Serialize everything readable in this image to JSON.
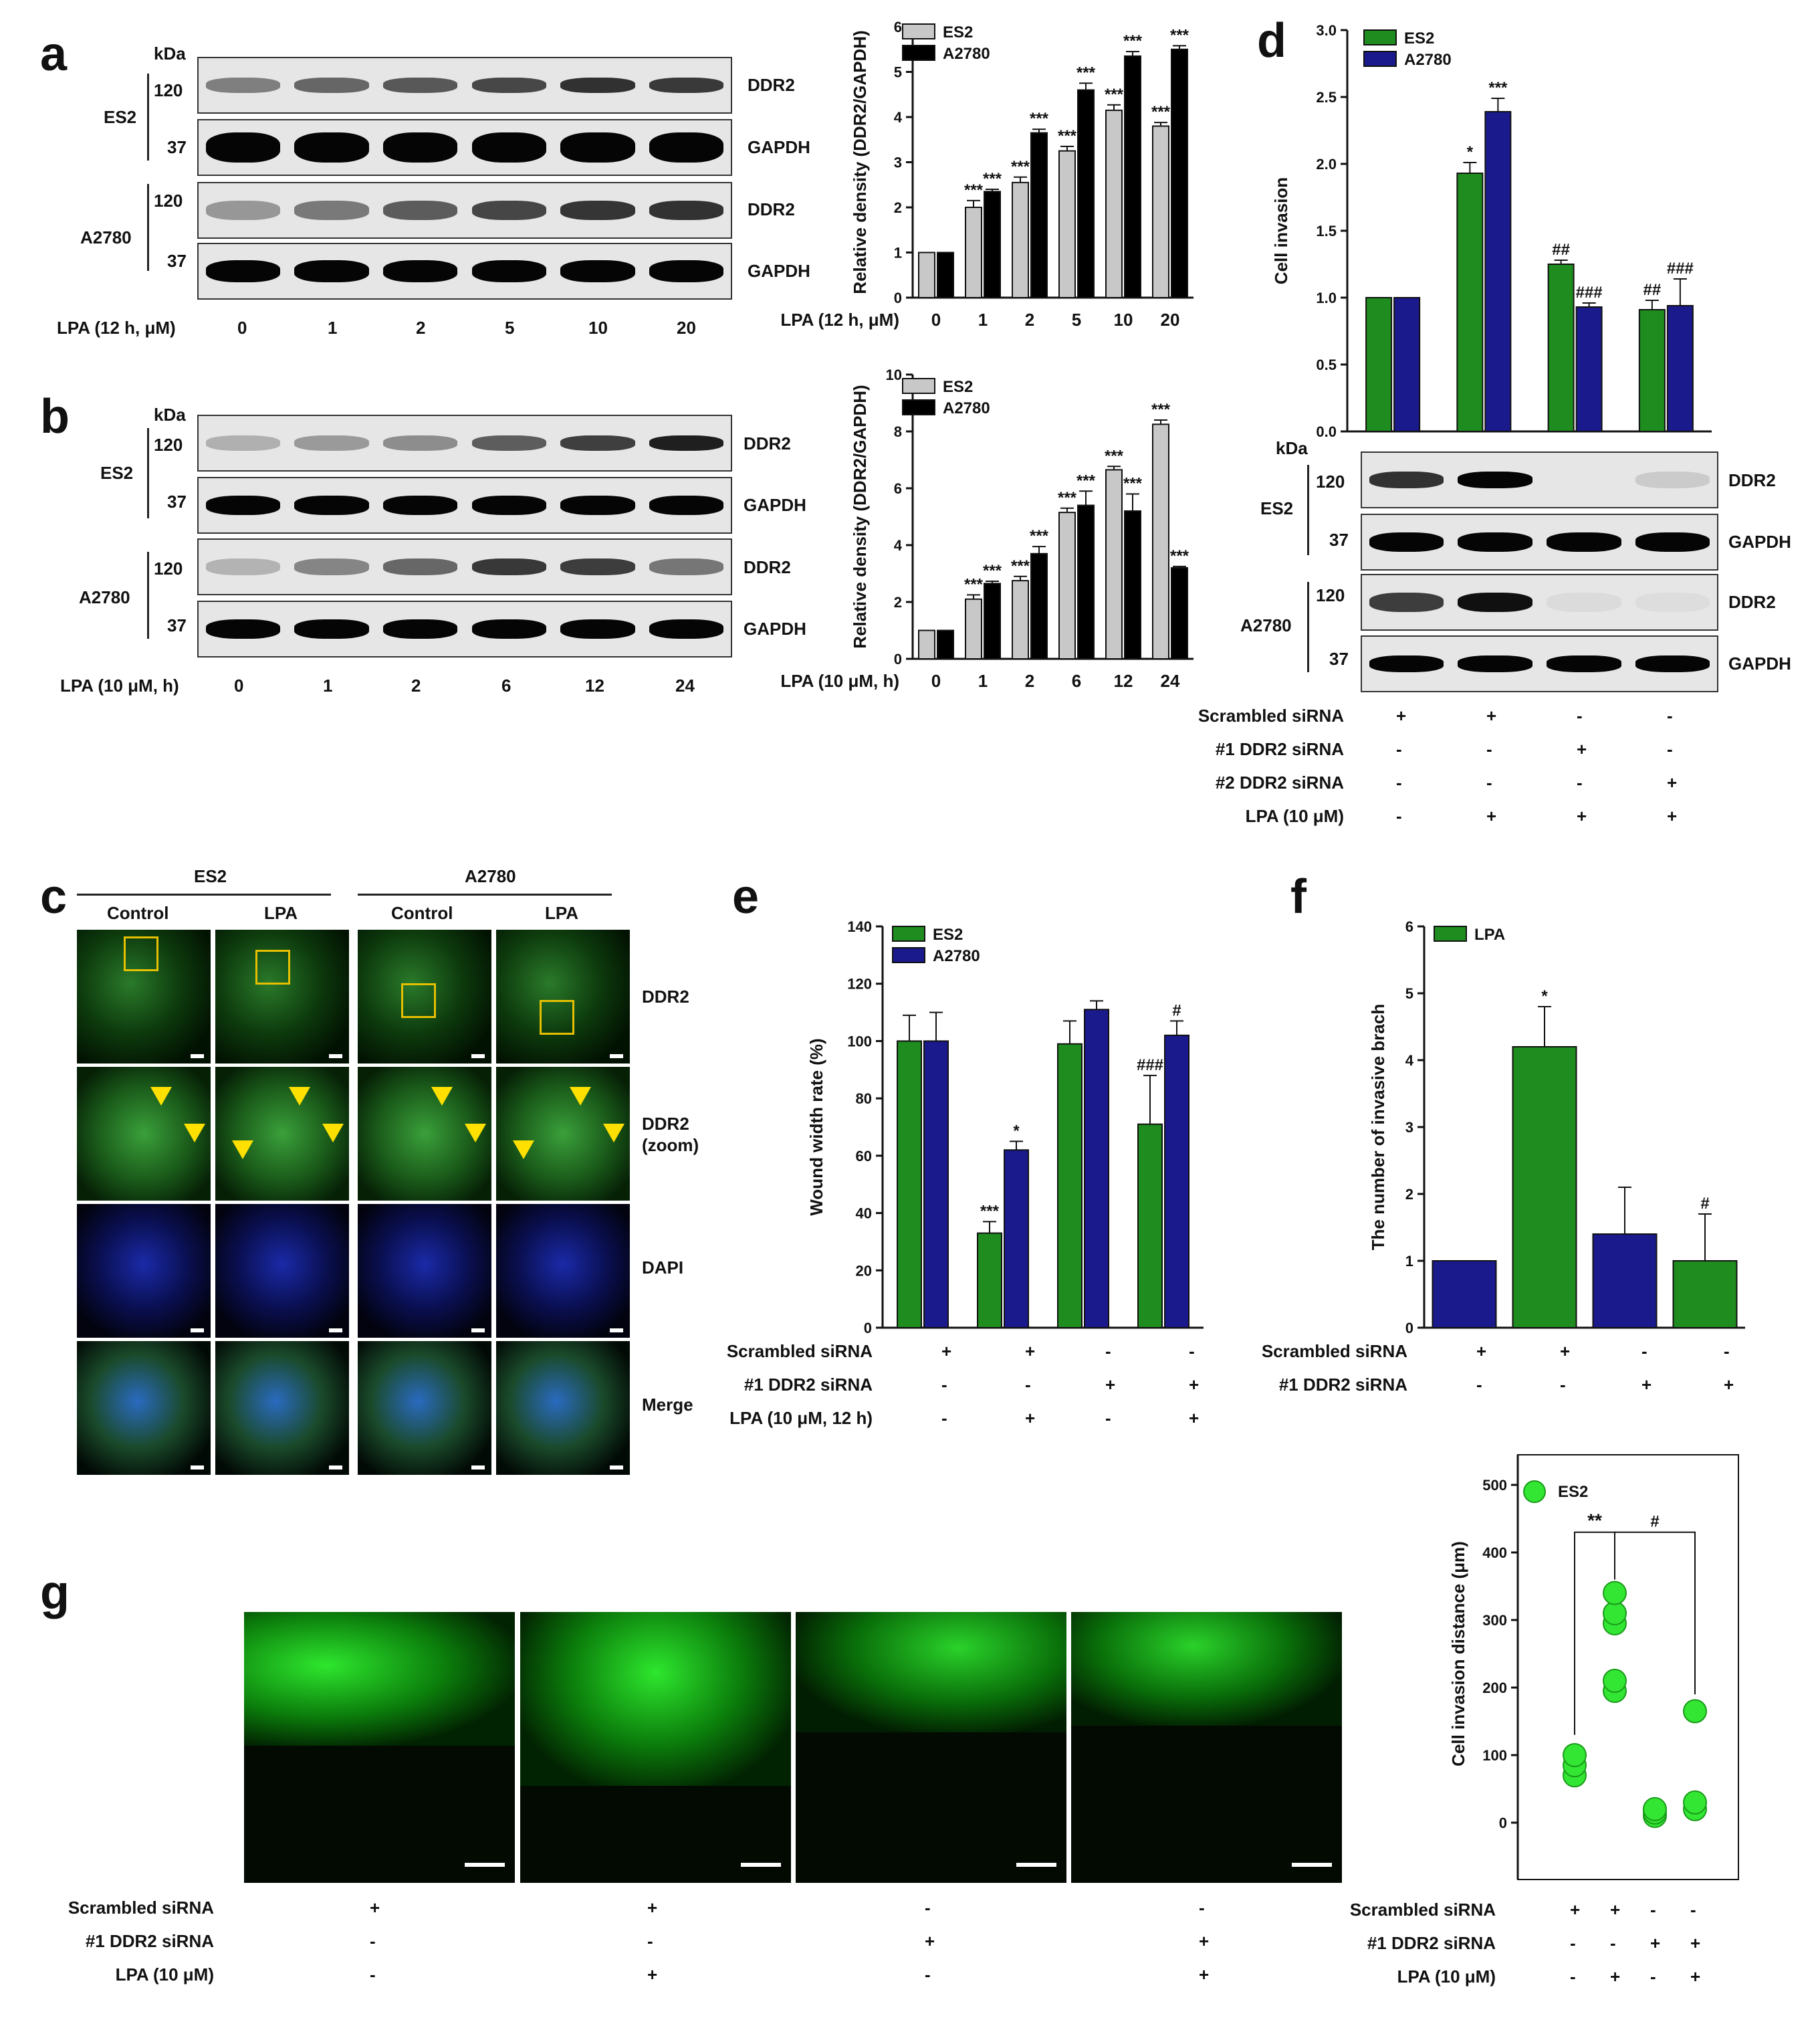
{
  "panels": {
    "a": "a",
    "b": "b",
    "c": "c",
    "d": "d",
    "e": "e",
    "f": "f",
    "g": "g"
  },
  "blot_common": {
    "kda": "kDa",
    "mw_120": "120",
    "mw_37": "37",
    "ddr2": "DDR2",
    "gapdh": "GAPDH",
    "es2": "ES2",
    "a2780": "A2780"
  },
  "panel_a": {
    "xlabel": "LPA (12 h, μM)",
    "lanes": [
      "0",
      "1",
      "2",
      "5",
      "10",
      "20"
    ]
  },
  "panel_b": {
    "xlabel": "LPA (10 μM, h)",
    "lanes": [
      "0",
      "1",
      "2",
      "6",
      "12",
      "24"
    ]
  },
  "panel_c": {
    "group_es2": "ES2",
    "group_a2780": "A2780",
    "cols": [
      "Control",
      "LPA",
      "Control",
      "LPA"
    ],
    "rows": [
      "DDR2",
      "DDR2",
      "(zoom)",
      "DAPI",
      "Merge"
    ]
  },
  "panel_d_blot": {
    "treat_labels": [
      "Scrambled siRNA",
      "#1 DDR2 siRNA",
      "#2 DDR2 siRNA",
      "LPA (10 μM)"
    ],
    "treat_signs": [
      [
        "+",
        "+",
        "-",
        "-"
      ],
      [
        "-",
        "-",
        "+",
        "-"
      ],
      [
        "-",
        "-",
        "-",
        "+"
      ],
      [
        "-",
        "+",
        "+",
        "+"
      ]
    ]
  },
  "panel_e_treat": {
    "labels": [
      "Scrambled siRNA",
      "#1 DDR2 siRNA",
      "LPA (10 μM, 12 h)"
    ],
    "signs": [
      [
        "+",
        "+",
        "-",
        "-"
      ],
      [
        "-",
        "-",
        "+",
        "+"
      ],
      [
        "-",
        "+",
        "-",
        "+"
      ]
    ]
  },
  "panel_f_treat": {
    "labels": [
      "Scrambled siRNA",
      "#1 DDR2 siRNA"
    ],
    "signs": [
      [
        "+",
        "+",
        "-",
        "-"
      ],
      [
        "-",
        "-",
        "+",
        "+"
      ]
    ]
  },
  "panel_g_treat": {
    "labels": [
      "Scrambled siRNA",
      "#1 DDR2 siRNA",
      "LPA (10 μM)"
    ],
    "signs": [
      [
        "+",
        "+",
        "-",
        "-"
      ],
      [
        "-",
        "-",
        "+",
        "+"
      ],
      [
        "-",
        "+",
        "-",
        "+"
      ]
    ]
  },
  "chart_data": [
    {
      "id": "a",
      "type": "bar",
      "xlabel": "LPA (12 h, μM)",
      "ylabel": "Relative density (DDR2/GAPDH)",
      "ylim": [
        0,
        6
      ],
      "yticks": [
        "0",
        "1",
        "2",
        "3",
        "4",
        "5",
        "6"
      ],
      "categories": [
        "0",
        "1",
        "2",
        "5",
        "10",
        "20"
      ],
      "series": [
        {
          "name": "ES2",
          "color": "#c8c8c8",
          "values": [
            1.0,
            2.0,
            2.55,
            3.25,
            4.15,
            3.8
          ],
          "err": [
            0,
            0.15,
            0.12,
            0.1,
            0.12,
            0.08
          ]
        },
        {
          "name": "A2780",
          "color": "#000000",
          "values": [
            1.0,
            2.35,
            3.65,
            4.6,
            5.35,
            5.5
          ],
          "err": [
            0,
            0.05,
            0.08,
            0.15,
            0.1,
            0.08
          ]
        }
      ],
      "annotations": [
        [
          "",
          "***",
          "***",
          "***",
          "***",
          "***"
        ],
        [
          "",
          "***",
          "***",
          "***",
          "***",
          "***"
        ]
      ]
    },
    {
      "id": "b",
      "type": "bar",
      "xlabel": "LPA (10 μM, h)",
      "ylabel": "Relative density (DDR2/GAPDH)",
      "ylim": [
        0,
        10
      ],
      "yticks": [
        "0",
        "2",
        "4",
        "6",
        "8",
        "10"
      ],
      "categories": [
        "0",
        "1",
        "2",
        "6",
        "12",
        "24"
      ],
      "series": [
        {
          "name": "ES2",
          "color": "#c8c8c8",
          "values": [
            1.0,
            2.1,
            2.75,
            5.15,
            6.65,
            8.25
          ],
          "err": [
            0,
            0.15,
            0.15,
            0.15,
            0.12,
            0.15
          ]
        },
        {
          "name": "A2780",
          "color": "#000000",
          "values": [
            1.0,
            2.65,
            3.7,
            5.4,
            5.2,
            3.2
          ],
          "err": [
            0,
            0.08,
            0.25,
            0.5,
            0.6,
            0.05
          ]
        }
      ],
      "annotations": [
        [
          "",
          "***",
          "***",
          "***",
          "***",
          "***"
        ],
        [
          "",
          "***",
          "***",
          "***",
          "***",
          "***"
        ]
      ]
    },
    {
      "id": "d",
      "type": "bar",
      "ylabel": "Cell invasion",
      "ylim": [
        0,
        3.0
      ],
      "yticks": [
        "0.0",
        "0.5",
        "1.0",
        "1.5",
        "2.0",
        "2.5",
        "3.0"
      ],
      "categories": [
        "1",
        "2",
        "3",
        "4"
      ],
      "series": [
        {
          "name": "ES2",
          "color": "#1e8c1e",
          "values": [
            1.0,
            1.93,
            1.25,
            0.91
          ],
          "err": [
            0,
            0.08,
            0.03,
            0.07
          ]
        },
        {
          "name": "A2780",
          "color": "#1a1a8c",
          "values": [
            1.0,
            2.39,
            0.93,
            0.94
          ],
          "err": [
            0,
            0.1,
            0.03,
            0.2
          ]
        }
      ],
      "annotations": [
        [
          "",
          "*",
          "##",
          "##"
        ],
        [
          "",
          "***",
          "###",
          "###"
        ]
      ]
    },
    {
      "id": "e",
      "type": "bar",
      "ylabel": "Wound  width rate (%)",
      "ylim": [
        0,
        140
      ],
      "yticks": [
        "0",
        "20",
        "40",
        "60",
        "80",
        "100",
        "120",
        "140"
      ],
      "categories": [
        "1",
        "2",
        "3",
        "4"
      ],
      "series": [
        {
          "name": "ES2",
          "color": "#1e8c1e",
          "values": [
            100,
            33,
            99,
            71
          ],
          "err": [
            9,
            4,
            8,
            17
          ]
        },
        {
          "name": "A2780",
          "color": "#1a1a8c",
          "values": [
            100,
            62,
            111,
            102
          ],
          "err": [
            10,
            3,
            3,
            5
          ]
        }
      ],
      "annotations": [
        [
          "",
          "***",
          "",
          "###"
        ],
        [
          "",
          "*",
          "",
          "#"
        ]
      ]
    },
    {
      "id": "f",
      "type": "bar",
      "ylabel": "The number of invasive brach",
      "ylim": [
        0,
        6
      ],
      "yticks": [
        "0",
        "1",
        "2",
        "3",
        "4",
        "5",
        "6"
      ],
      "categories": [
        "1",
        "2",
        "3",
        "4"
      ],
      "legend": "LPA",
      "series": [
        {
          "name": "LPA",
          "values": [
            1.0,
            4.2,
            1.4,
            1.0
          ],
          "colors": [
            "#1a1a8c",
            "#1e8c1e",
            "#1a1a8c",
            "#1e8c1e"
          ],
          "err": [
            0,
            0.6,
            0.7,
            0.7
          ]
        }
      ],
      "annotations": [
        [
          "",
          "*",
          "",
          "#"
        ]
      ]
    },
    {
      "id": "g",
      "type": "scatter",
      "ylabel": "Cell invasion distance (μm)",
      "legend": "ES2",
      "ylim": [
        0,
        500
      ],
      "yticks": [
        "0",
        "100",
        "200",
        "300",
        "400",
        "500"
      ],
      "groups": [
        [
          70,
          85,
          100
        ],
        [
          195,
          210,
          295,
          310,
          340
        ],
        [
          10,
          15,
          20
        ],
        [
          20,
          30,
          165
        ]
      ],
      "sig": [
        "**",
        "#"
      ]
    }
  ]
}
